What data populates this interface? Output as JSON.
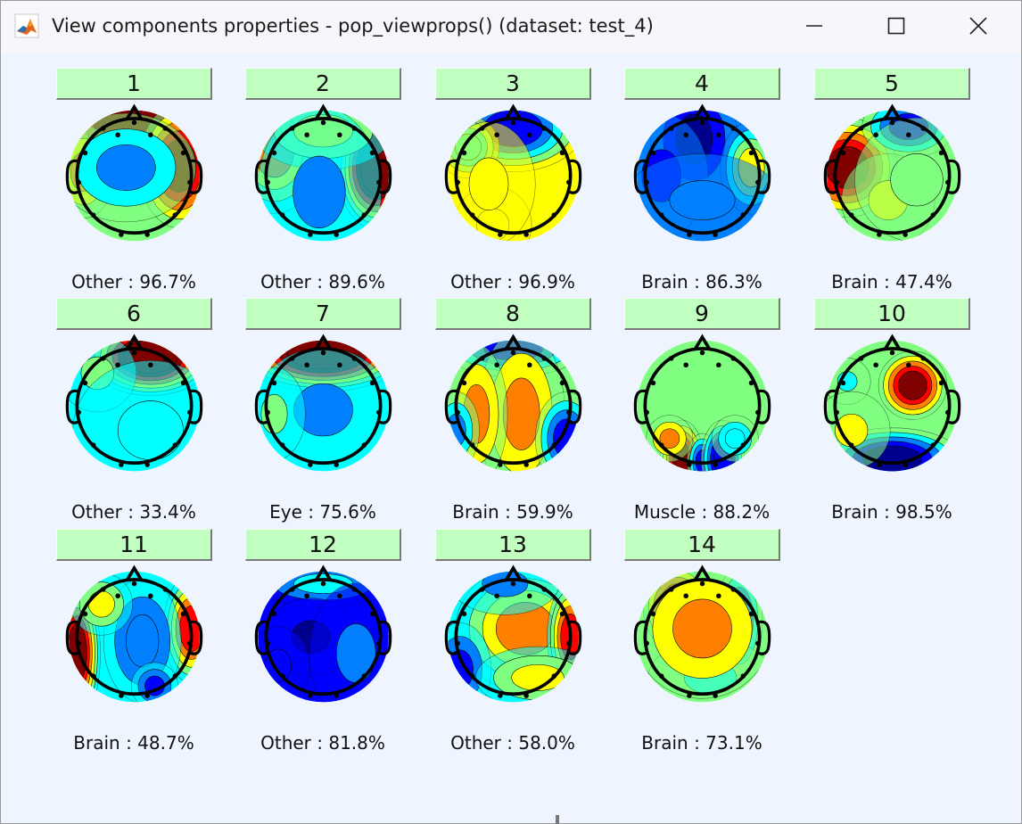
{
  "window": {
    "title": "View components properties - pop_viewprops() (dataset: test_4)",
    "app_icon": "matlab-icon",
    "controls": [
      "minimize-icon",
      "maximize-icon",
      "close-icon"
    ]
  },
  "colormap": [
    "#00008f",
    "#0000ff",
    "#0080ff",
    "#00ffff",
    "#80ff80",
    "#ffff00",
    "#ff8000",
    "#ff0000",
    "#800000"
  ],
  "components": [
    {
      "number": "1",
      "label": "Other : 96.7%",
      "base": 4,
      "blobs": [
        [
          0,
          -62,
          48,
          36,
          8.5
        ],
        [
          55,
          -12,
          26,
          40,
          7.5
        ],
        [
          -62,
          -5,
          20,
          30,
          5.5
        ],
        [
          -10,
          -10,
          45,
          35,
          2.2
        ]
      ]
    },
    {
      "number": "2",
      "label": "Other : 89.6%",
      "base": 3,
      "blobs": [
        [
          65,
          -10,
          25,
          40,
          8.5
        ],
        [
          -60,
          -30,
          30,
          40,
          5.5
        ],
        [
          0,
          -55,
          45,
          25,
          5
        ],
        [
          -5,
          20,
          40,
          55,
          2.3
        ]
      ]
    },
    {
      "number": "3",
      "label": "Other : 96.9%",
      "base": 5,
      "blobs": [
        [
          0,
          -58,
          45,
          28,
          0.8
        ],
        [
          -55,
          -35,
          20,
          20,
          2.5
        ],
        [
          -25,
          60,
          25,
          25,
          4.6
        ],
        [
          -30,
          10,
          30,
          40,
          4.8
        ]
      ]
    },
    {
      "number": "4",
      "label": "Brain : 86.3%",
      "base": 2,
      "blobs": [
        [
          -10,
          -45,
          28,
          38,
          0.3
        ],
        [
          -50,
          0,
          30,
          40,
          1.2
        ],
        [
          60,
          -10,
          20,
          30,
          4.5
        ],
        [
          0,
          30,
          50,
          30,
          1.8
        ]
      ]
    },
    {
      "number": "5",
      "label": "Brain : 47.4%",
      "base": 4,
      "blobs": [
        [
          -55,
          -10,
          32,
          32,
          8.3
        ],
        [
          20,
          -60,
          30,
          20,
          1.2
        ],
        [
          -5,
          30,
          30,
          30,
          5.1
        ],
        [
          30,
          5,
          40,
          40,
          4
        ]
      ]
    },
    {
      "number": "6",
      "label": "Other : 33.4%",
      "base": 3,
      "blobs": [
        [
          20,
          -60,
          40,
          25,
          8.6
        ],
        [
          -45,
          -40,
          25,
          25,
          4.3
        ],
        [
          20,
          30,
          50,
          45,
          3
        ]
      ]
    },
    {
      "number": "7",
      "label": "Eye : 75.6%",
      "base": 3,
      "blobs": [
        [
          0,
          -65,
          55,
          25,
          8.5
        ],
        [
          0,
          5,
          45,
          40,
          2.4
        ],
        [
          -60,
          10,
          20,
          30,
          4
        ]
      ]
    },
    {
      "number": "8",
      "label": "Brain : 59.9%",
      "base": 4,
      "blobs": [
        [
          0,
          -70,
          45,
          18,
          1
        ],
        [
          10,
          10,
          28,
          55,
          6.2
        ],
        [
          -45,
          10,
          20,
          45,
          5.5
        ],
        [
          -70,
          30,
          15,
          25,
          1.8
        ],
        [
          65,
          40,
          20,
          30,
          1.2
        ]
      ]
    },
    {
      "number": "9",
      "label": "Muscle : 88.2%",
      "base": 4,
      "blobs": [
        [
          -25,
          65,
          14,
          25,
          8.3
        ],
        [
          0,
          68,
          10,
          18,
          1.4
        ],
        [
          25,
          65,
          14,
          25,
          0.5
        ],
        [
          -40,
          40,
          15,
          15,
          6
        ],
        [
          40,
          40,
          15,
          15,
          2.5
        ]
      ]
    },
    {
      "number": "10",
      "label": "Brain : 98.5%",
      "base": 4,
      "blobs": [
        [
          25,
          -25,
          22,
          22,
          7.5
        ],
        [
          0,
          65,
          45,
          20,
          0.3
        ],
        [
          -55,
          -30,
          15,
          15,
          3
        ],
        [
          -50,
          30,
          25,
          25,
          4.8
        ]
      ]
    },
    {
      "number": "11",
      "label": "Brain : 48.7%",
      "base": 3,
      "blobs": [
        [
          -70,
          20,
          15,
          45,
          7.5
        ],
        [
          70,
          -10,
          18,
          35,
          7
        ],
        [
          10,
          5,
          25,
          40,
          1.5
        ],
        [
          25,
          60,
          15,
          15,
          1
        ],
        [
          -40,
          -40,
          20,
          20,
          4.8
        ]
      ]
    },
    {
      "number": "12",
      "label": "Other : 81.8%",
      "base": 1,
      "blobs": [
        [
          0,
          -65,
          45,
          15,
          3
        ],
        [
          -15,
          0,
          30,
          25,
          0.3
        ],
        [
          40,
          20,
          30,
          45,
          1.5
        ],
        [
          -55,
          35,
          20,
          25,
          0.7
        ]
      ]
    },
    {
      "number": "13",
      "label": "Other : 58.0%",
      "base": 3,
      "blobs": [
        [
          15,
          -10,
          45,
          40,
          5.5
        ],
        [
          -65,
          40,
          20,
          30,
          1.2
        ],
        [
          -10,
          -65,
          35,
          20,
          1.8
        ],
        [
          70,
          0,
          15,
          35,
          6.5
        ],
        [
          30,
          50,
          40,
          20,
          4.5
        ]
      ]
    },
    {
      "number": "14",
      "label": "Brain : 73.1%",
      "base": 4,
      "blobs": [
        [
          -30,
          -35,
          22,
          28,
          8.2
        ],
        [
          45,
          -20,
          15,
          35,
          1.5
        ],
        [
          10,
          50,
          40,
          25,
          3
        ],
        [
          0,
          -10,
          45,
          45,
          6
        ]
      ]
    }
  ]
}
